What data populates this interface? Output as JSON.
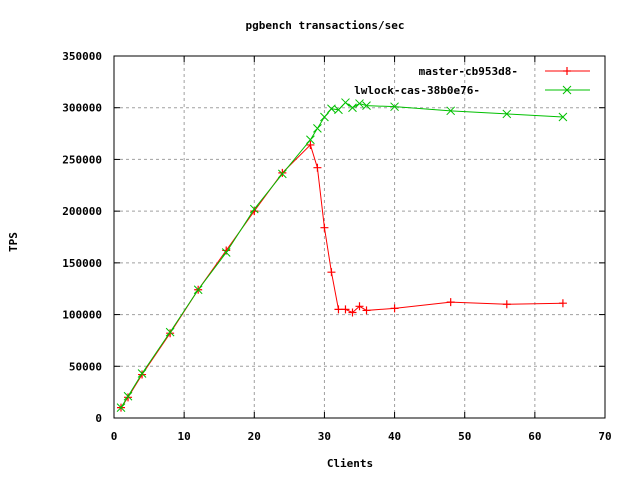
{
  "chart_data": {
    "type": "line",
    "title": "pgbench transactions/sec",
    "xlabel": "Clients",
    "ylabel": "TPS",
    "xlim": [
      0,
      70
    ],
    "ylim": [
      0,
      350000
    ],
    "xticks": [
      0,
      10,
      20,
      30,
      40,
      50,
      60,
      70
    ],
    "yticks": [
      0,
      50000,
      100000,
      150000,
      200000,
      250000,
      300000,
      350000
    ],
    "xtick_labels": [
      "0",
      "10",
      "20",
      "30",
      "40",
      "50",
      "60",
      "70"
    ],
    "ytick_labels": [
      "0",
      "50000",
      "100000",
      "150000",
      "200000",
      "250000",
      "300000",
      "350000"
    ],
    "grid": true,
    "legend_position": "top-right",
    "series": [
      {
        "name": "master-cb953d8-",
        "color": "#ff0000",
        "marker": "plus",
        "x": [
          1,
          2,
          4,
          8,
          12,
          16,
          20,
          24,
          28,
          29,
          30,
          31,
          32,
          33,
          34,
          35,
          36,
          40,
          48,
          56,
          64
        ],
        "y": [
          10000,
          20000,
          42000,
          82000,
          124000,
          162000,
          200000,
          237000,
          264000,
          242000,
          184000,
          141000,
          105000,
          105000,
          102000,
          108000,
          104000,
          106000,
          112000,
          110000,
          111000
        ]
      },
      {
        "name": "lwlock-cas-38b0e76-",
        "color": "#00c000",
        "marker": "cross",
        "x": [
          1,
          2,
          4,
          8,
          12,
          16,
          20,
          24,
          28,
          29,
          30,
          31,
          32,
          33,
          34,
          35,
          36,
          40,
          48,
          56,
          64
        ],
        "y": [
          10000,
          21000,
          43000,
          83000,
          124000,
          160000,
          202000,
          236000,
          269000,
          280000,
          291000,
          299000,
          298000,
          305000,
          300000,
          304000,
          302000,
          301000,
          297000,
          294000,
          291000
        ]
      }
    ]
  }
}
